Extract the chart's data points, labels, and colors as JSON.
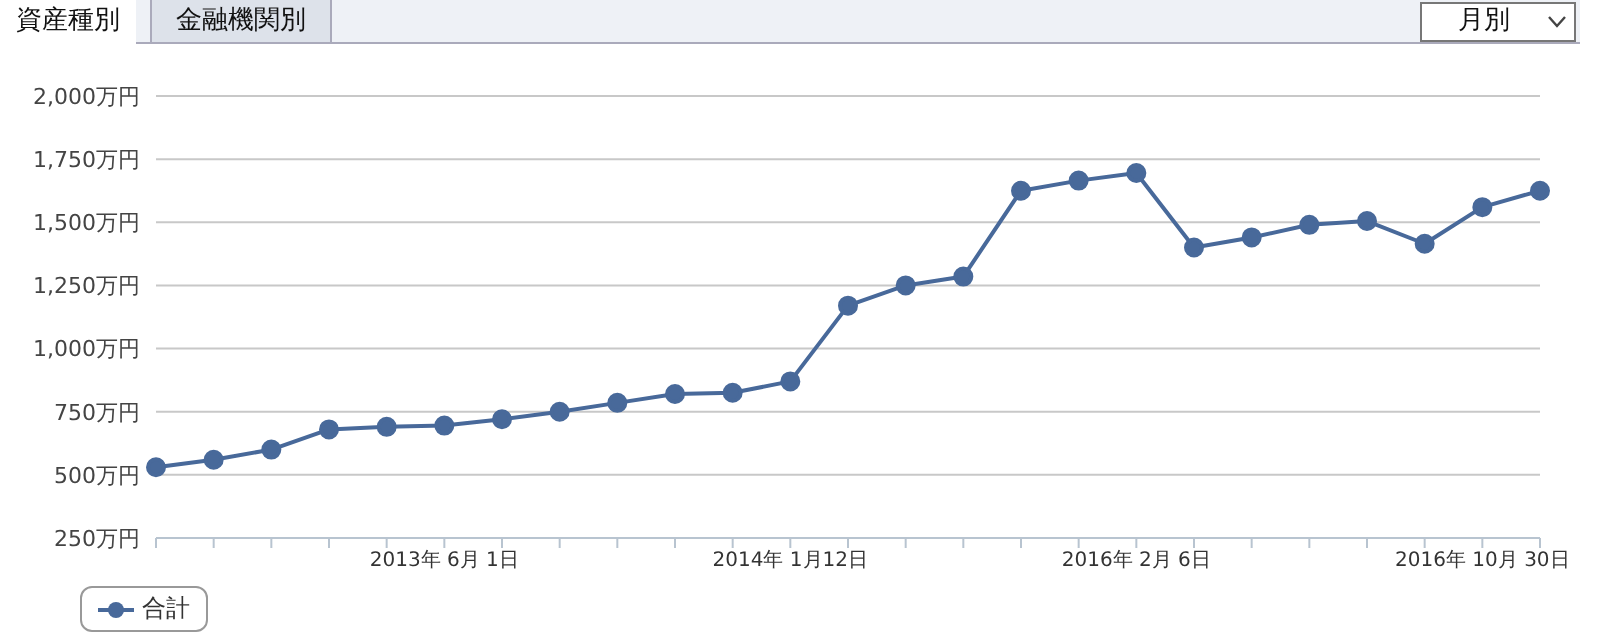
{
  "chart_data": {
    "type": "line",
    "categories": [
      null,
      null,
      null,
      null,
      null,
      "2013年 6月 1日",
      null,
      null,
      null,
      null,
      null,
      "2014年 1月12日",
      null,
      null,
      null,
      null,
      null,
      "2016年 2月 6日",
      null,
      null,
      null,
      null,
      null,
      "2016年 10月 30日",
      null
    ],
    "series": [
      {
        "name": "合計",
        "color": "#48699a",
        "values": [
          530,
          560,
          600,
          680,
          690,
          695,
          720,
          750,
          785,
          820,
          825,
          870,
          1170,
          1250,
          1285,
          1625,
          1665,
          1695,
          1400,
          1440,
          1490,
          1505,
          1415,
          1560,
          1625
        ]
      }
    ],
    "ylim": [
      250,
      2000
    ],
    "yticks": [
      {
        "value": 250,
        "label": "250万円"
      },
      {
        "value": 500,
        "label": "500万円"
      },
      {
        "value": 750,
        "label": "750万円"
      },
      {
        "value": 1000,
        "label": "1,000万円"
      },
      {
        "value": 1250,
        "label": "1,250万円"
      },
      {
        "value": 1500,
        "label": "1,500万円"
      },
      {
        "value": 1750,
        "label": "1,750万円"
      },
      {
        "value": 2000,
        "label": "2,000万円"
      }
    ],
    "grid": "y",
    "legend": "bottom left",
    "marker": "circle",
    "line_style": "solid",
    "annotations": [
      "資産種別",
      "金融機関別",
      "月別"
    ]
  }
}
